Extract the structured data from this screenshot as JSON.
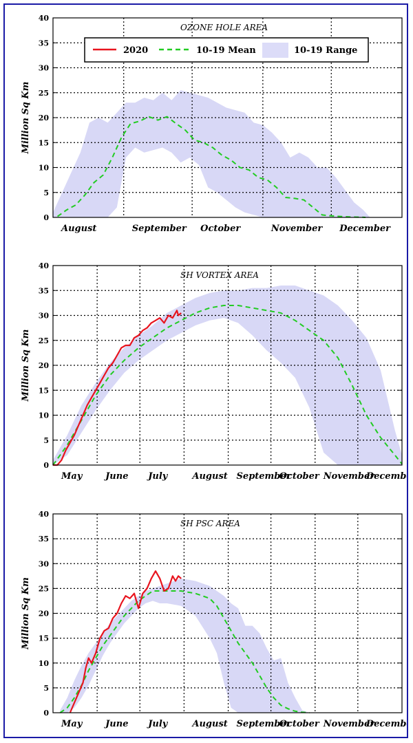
{
  "legend": {
    "items": [
      {
        "label": "2020",
        "color": "#e8141e",
        "kind": "solid"
      },
      {
        "label": "10-19 Mean",
        "color": "#22cc22",
        "kind": "dashed"
      },
      {
        "label": "10-19 Range",
        "color": "#dcdcf8",
        "kind": "band"
      }
    ]
  },
  "colors": {
    "series_2020": "#e8141e",
    "mean": "#22cc22",
    "range": "#d8d8f6",
    "frame": "#1a1aa6"
  },
  "chart_data": [
    {
      "type": "line",
      "title": "OZONE HOLE AREA",
      "ylabel": "Million Sq Km",
      "ylim": [
        0,
        40
      ],
      "yticks": [
        0,
        5,
        10,
        15,
        20,
        25,
        30,
        35,
        40
      ],
      "xlim": [
        0,
        153
      ],
      "months": [
        {
          "label": "August",
          "x": 0
        },
        {
          "label": "September",
          "x": 31
        },
        {
          "label": "October",
          "x": 61
        },
        {
          "label": "November",
          "x": 92
        },
        {
          "label": "December",
          "x": 122
        }
      ],
      "grid": true,
      "legend_position": "top",
      "mean": {
        "x": [
          2,
          6,
          10,
          14,
          18,
          22,
          26,
          30,
          34,
          38,
          42,
          46,
          50,
          54,
          58,
          62,
          66,
          70,
          74,
          78,
          82,
          86,
          90,
          94,
          98,
          102,
          106,
          110,
          114,
          118,
          122,
          126,
          130,
          134,
          137
        ],
        "y": [
          0.2,
          1.5,
          2.5,
          4.5,
          7,
          8.5,
          12,
          16,
          18.8,
          19.3,
          20.2,
          19.5,
          20.2,
          18.8,
          17.5,
          15.5,
          15,
          14,
          12.5,
          11.5,
          10,
          9.5,
          8,
          7.5,
          6,
          4,
          3.8,
          3.5,
          2,
          0.5,
          0.3,
          0.2,
          0.1,
          0.05,
          0
        ]
      },
      "range": {
        "x": [
          0,
          4,
          8,
          12,
          16,
          20,
          24,
          28,
          32,
          36,
          40,
          44,
          48,
          52,
          56,
          60,
          64,
          68,
          72,
          76,
          80,
          84,
          88,
          92,
          96,
          100,
          104,
          108,
          112,
          116,
          120,
          124,
          128,
          132,
          136,
          139
        ],
        "upper": [
          1,
          5,
          9,
          13,
          19,
          20,
          19,
          21,
          23,
          23,
          24,
          23.5,
          25,
          23.5,
          25.5,
          25,
          24.5,
          24,
          23,
          22,
          21.5,
          21,
          19,
          18.5,
          17,
          15,
          12,
          13,
          12,
          10,
          10,
          8,
          5.5,
          3,
          1.5,
          0
        ],
        "lower": [
          0,
          0,
          0,
          0,
          0,
          0,
          0,
          2,
          12,
          14,
          13,
          13.5,
          14,
          13,
          11,
          12,
          10.5,
          6,
          5,
          3.5,
          2,
          1,
          0.5,
          0,
          0,
          0,
          0,
          0,
          0,
          0,
          0,
          0,
          0,
          0,
          0,
          0
        ]
      }
    },
    {
      "type": "line",
      "title": "SH VORTEX AREA",
      "ylabel": "Million Sq Km",
      "ylim": [
        0,
        40
      ],
      "yticks": [
        0,
        5,
        10,
        15,
        20,
        25,
        30,
        35,
        40
      ],
      "xlim": [
        0,
        245
      ],
      "months": [
        {
          "label": "May",
          "x": 0
        },
        {
          "label": "June",
          "x": 31
        },
        {
          "label": "July",
          "x": 61
        },
        {
          "label": "August",
          "x": 92
        },
        {
          "label": "September",
          "x": 123
        },
        {
          "label": "October",
          "x": 153
        },
        {
          "label": "November",
          "x": 184
        },
        {
          "label": "December",
          "x": 214
        }
      ],
      "grid": true,
      "series_2020": {
        "x": [
          0,
          3,
          6,
          9,
          12,
          15,
          18,
          21,
          24,
          27,
          30,
          33,
          36,
          39,
          42,
          45,
          48,
          51,
          54,
          57,
          60,
          63,
          66,
          69,
          72,
          75,
          78,
          81,
          84,
          87,
          88,
          90
        ],
        "y": [
          0,
          0,
          1,
          3,
          4.5,
          6,
          8,
          10,
          12,
          13.5,
          15,
          16.5,
          18,
          19.5,
          20.5,
          22,
          23.5,
          24,
          24,
          25.5,
          26,
          27,
          27.5,
          28.5,
          29,
          29.5,
          28.5,
          30,
          29.5,
          31,
          30,
          30.5
        ]
      },
      "mean": {
        "x": [
          0,
          10,
          20,
          30,
          40,
          50,
          60,
          70,
          80,
          90,
          100,
          110,
          120,
          130,
          140,
          150,
          160,
          170,
          180,
          190,
          200,
          210,
          220,
          230,
          240,
          245
        ],
        "y": [
          0,
          4,
          9,
          14,
          18,
          21,
          23.5,
          25.5,
          27.5,
          29,
          30.5,
          31.5,
          32,
          32,
          31.5,
          31,
          30.5,
          29,
          27,
          25,
          21.5,
          16,
          10,
          5.5,
          2,
          0.2
        ]
      },
      "range": {
        "x": [
          0,
          10,
          20,
          30,
          40,
          50,
          60,
          70,
          80,
          90,
          100,
          110,
          120,
          130,
          140,
          150,
          160,
          170,
          180,
          190,
          200,
          210,
          220,
          230,
          240,
          245
        ],
        "upper": [
          1,
          6,
          12,
          16.5,
          20.5,
          23.5,
          26,
          28,
          30.5,
          32,
          33.5,
          34.5,
          35,
          35,
          35.5,
          35.5,
          36,
          36,
          35,
          34,
          32,
          29,
          25.5,
          19,
          7,
          2
        ],
        "lower": [
          0,
          2,
          6.5,
          11,
          15,
          18.5,
          21,
          23,
          25,
          26.5,
          28,
          29,
          29.5,
          28.5,
          26,
          23,
          20.5,
          17.5,
          11.5,
          2.5,
          0,
          0,
          0,
          0,
          0,
          0
        ]
      }
    },
    {
      "type": "line",
      "title": "SH PSC AREA",
      "ylabel": "Million Sq Km",
      "ylim": [
        0,
        40
      ],
      "yticks": [
        0,
        5,
        10,
        15,
        20,
        25,
        30,
        35,
        40
      ],
      "xlim": [
        0,
        245
      ],
      "months": [
        {
          "label": "May",
          "x": 0
        },
        {
          "label": "June",
          "x": 31
        },
        {
          "label": "July",
          "x": 61
        },
        {
          "label": "August",
          "x": 92
        },
        {
          "label": "September",
          "x": 123
        },
        {
          "label": "October",
          "x": 153
        },
        {
          "label": "November",
          "x": 184
        },
        {
          "label": "December",
          "x": 214
        }
      ],
      "grid": true,
      "series_2020": {
        "x": [
          12,
          15,
          18,
          21,
          23,
          25,
          27,
          30,
          33,
          36,
          39,
          42,
          45,
          48,
          51,
          54,
          57,
          60,
          63,
          66,
          69,
          72,
          75,
          78,
          81,
          84,
          86,
          88,
          90
        ],
        "y": [
          0,
          2,
          4,
          6,
          9,
          11,
          10,
          12,
          15,
          16.5,
          17,
          19,
          20,
          22,
          23.5,
          23,
          24,
          21,
          24,
          25,
          27,
          28.5,
          27,
          24.5,
          25,
          27.5,
          26.5,
          27.5,
          27
        ]
      },
      "mean": {
        "x": [
          5,
          10,
          15,
          20,
          25,
          30,
          35,
          40,
          45,
          50,
          55,
          60,
          65,
          70,
          75,
          80,
          90,
          100,
          110,
          115,
          120,
          125,
          130,
          135,
          140,
          145,
          150,
          155,
          160,
          165,
          170,
          175,
          180
        ],
        "y": [
          0,
          1,
          3,
          5.5,
          8.5,
          11,
          13.5,
          15.5,
          17.5,
          19.5,
          21,
          22.5,
          23.5,
          24.5,
          24.5,
          24.5,
          24.5,
          24,
          23,
          21.5,
          19,
          16.5,
          14,
          12,
          10,
          7.5,
          5,
          3,
          1.5,
          0.8,
          0.3,
          0.1,
          0
        ]
      },
      "range": {
        "x": [
          5,
          10,
          15,
          20,
          25,
          30,
          35,
          40,
          45,
          50,
          55,
          60,
          65,
          70,
          75,
          80,
          90,
          100,
          110,
          115,
          120,
          125,
          130,
          135,
          140,
          145,
          150,
          155,
          160,
          165,
          170,
          175,
          180
        ],
        "upper": [
          0.5,
          3,
          6.5,
          9.5,
          12,
          14,
          16,
          18,
          19.5,
          21,
          22.5,
          23.5,
          24.5,
          25,
          25.5,
          26,
          27,
          26.5,
          25.5,
          24.5,
          23.5,
          22,
          21,
          17.5,
          17.5,
          16,
          13,
          10.5,
          11,
          6,
          3,
          0.5,
          0
        ],
        "lower": [
          0,
          0,
          1,
          3,
          5.5,
          8.5,
          11.5,
          14,
          16,
          18,
          19.5,
          21,
          22,
          22.5,
          22,
          22,
          21.5,
          19.5,
          15,
          12,
          6,
          1,
          0,
          0,
          0,
          0,
          0,
          0,
          0,
          0,
          0,
          0,
          0
        ]
      }
    }
  ]
}
